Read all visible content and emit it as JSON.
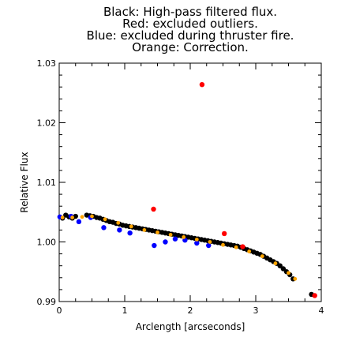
{
  "chart_data": {
    "type": "scatter",
    "title_lines": [
      "Black: High-pass filtered flux.",
      "Red: excluded outliers.",
      "Blue: excluded during thruster fire.",
      "Orange: Correction."
    ],
    "xlabel": "Arclength [arcseconds]",
    "ylabel": "Relative Flux",
    "xlim": [
      0,
      4
    ],
    "ylim": [
      0.99,
      1.03
    ],
    "x_ticks": [
      "0",
      "1",
      "2",
      "3",
      "4"
    ],
    "y_ticks": [
      "0.99",
      "1.00",
      "1.01",
      "1.02",
      "1.03"
    ],
    "grid": false,
    "colors": {
      "filtered": "#000000",
      "outliers": "#ff0000",
      "thruster": "#0000ff",
      "correction": "#ffa500"
    },
    "series": [
      {
        "role": "filtered",
        "x": [
          0.05,
          0.1,
          0.15,
          0.2,
          0.25,
          0.42,
          0.47,
          0.52,
          0.57,
          0.62,
          0.67,
          0.72,
          0.77,
          0.82,
          0.87,
          0.92,
          0.97,
          1.02,
          1.07,
          1.12,
          1.17,
          1.22,
          1.27,
          1.32,
          1.37,
          1.42,
          1.47,
          1.52,
          1.57,
          1.62,
          1.67,
          1.72,
          1.77,
          1.82,
          1.87,
          1.92,
          1.97,
          2.02,
          2.07,
          2.12,
          2.17,
          2.22,
          2.27,
          2.32,
          2.37,
          2.42,
          2.47,
          2.52,
          2.57,
          2.62,
          2.67,
          2.72,
          2.77,
          2.82,
          2.87,
          2.92,
          2.97,
          3.02,
          3.07,
          3.12,
          3.17,
          3.22,
          3.27,
          3.32,
          3.37,
          3.42,
          3.47,
          3.52,
          3.57,
          3.85
        ],
        "y": [
          1.004,
          1.0045,
          1.0042,
          1.004,
          1.0043,
          1.0045,
          1.0044,
          1.0043,
          1.0041,
          1.004,
          1.0038,
          1.0036,
          1.0034,
          1.0033,
          1.0031,
          1.003,
          1.0028,
          1.0027,
          1.0026,
          1.0025,
          1.0024,
          1.0023,
          1.0022,
          1.0021,
          1.002,
          1.0019,
          1.0018,
          1.0017,
          1.0016,
          1.0015,
          1.0014,
          1.0013,
          1.0012,
          1.0011,
          1.001,
          1.0009,
          1.0008,
          1.0007,
          1.0006,
          1.0005,
          1.0004,
          1.0003,
          1.0002,
          1.0001,
          1.0,
          0.9999,
          0.9998,
          0.9997,
          0.9996,
          0.9995,
          0.9994,
          0.9993,
          0.9991,
          0.9989,
          0.9987,
          0.9985,
          0.9983,
          0.9981,
          0.9979,
          0.9976,
          0.9973,
          0.997,
          0.9967,
          0.9964,
          0.996,
          0.9955,
          0.995,
          0.9945,
          0.9938,
          0.9912
        ]
      },
      {
        "role": "outliers",
        "x": [
          2.18,
          1.44,
          2.52,
          2.8,
          3.9
        ],
        "y": [
          1.0264,
          1.0055,
          1.0014,
          0.9992,
          0.991
        ]
      },
      {
        "role": "thruster",
        "x": [
          0.01,
          0.18,
          0.3,
          0.48,
          0.68,
          0.92,
          1.08,
          1.45,
          1.62,
          1.77,
          1.92,
          2.1,
          2.28
        ],
        "y": [
          1.0042,
          1.0043,
          1.0034,
          1.0041,
          1.0024,
          1.002,
          1.0015,
          0.9994,
          1.0,
          1.0005,
          1.0003,
          0.9998,
          0.9994
        ]
      },
      {
        "role": "correction",
        "x": [
          0.05,
          0.2,
          0.35,
          0.5,
          0.7,
          0.9,
          1.1,
          1.3,
          1.5,
          1.7,
          1.9,
          2.1,
          2.3,
          2.5,
          2.7,
          2.9,
          3.1,
          3.3,
          3.5,
          3.6
        ],
        "y": [
          1.0041,
          1.0041,
          1.0042,
          1.0043,
          1.0038,
          1.0032,
          1.0026,
          1.002,
          1.0016,
          1.0012,
          1.0008,
          1.0004,
          1.0,
          0.9995,
          0.9991,
          0.9984,
          0.9976,
          0.9964,
          0.9948,
          0.9938
        ]
      }
    ]
  }
}
